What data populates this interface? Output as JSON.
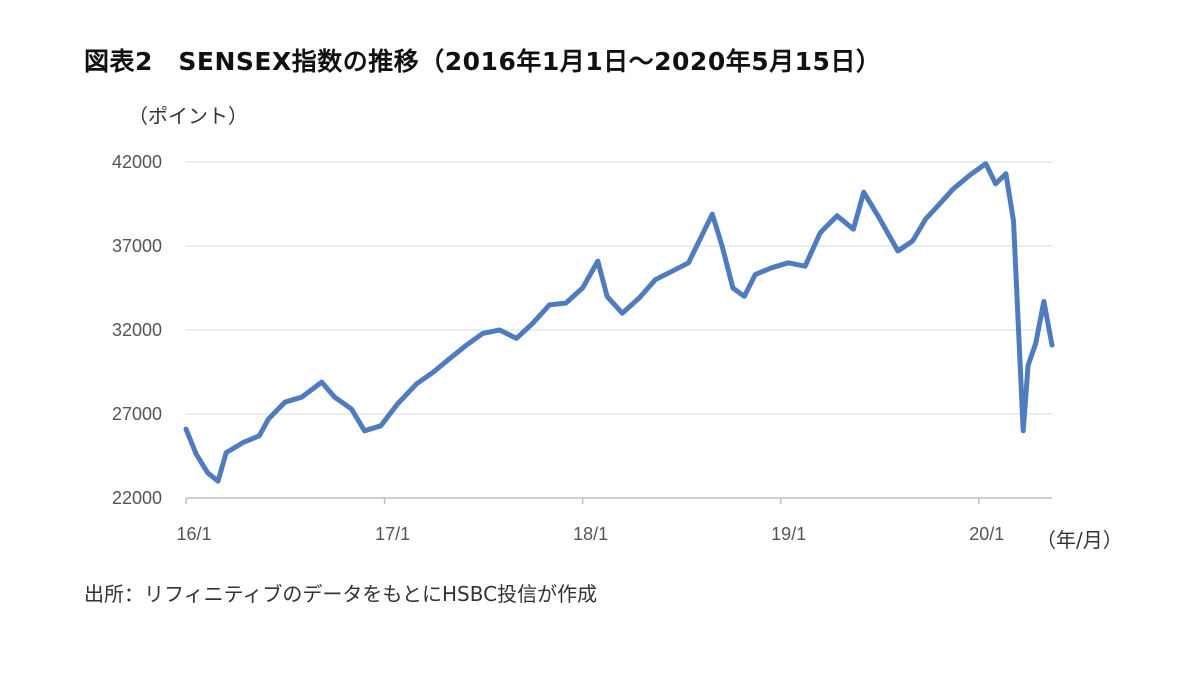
{
  "title": "図表2　SENSEX指数の推移（2016年1月1日～2020年5月15日）",
  "y_unit_label": "（ポイント）",
  "x_unit_label": "（年/月）",
  "source": "出所：リフィニティブのデータをもとにHSBC投信が作成",
  "colors": {
    "line": "#4f7bbf",
    "grid": "#d9d9d9",
    "axis": "#bfbfbf"
  },
  "chart_data": {
    "type": "line",
    "ylim": [
      22000,
      42000
    ],
    "y_ticks": [
      22000,
      27000,
      32000,
      37000,
      42000
    ],
    "y_tick_labels": [
      "22000",
      "27000",
      "32000",
      "37000",
      "42000"
    ],
    "x_range": [
      "2016-01-01",
      "2020-05-15"
    ],
    "x_ticks": [
      "2016-01-01",
      "2017-01-01",
      "2018-01-01",
      "2019-01-01",
      "2020-01-01"
    ],
    "x_tick_labels": [
      "16/1",
      "17/1",
      "18/1",
      "19/1",
      "20/1"
    ],
    "grid": "horizontal",
    "series": [
      {
        "x": [
          "2016-01-01",
          "2016-01-20",
          "2016-02-10",
          "2016-02-29",
          "2016-03-15",
          "2016-04-15",
          "2016-05-15",
          "2016-06-01",
          "2016-07-01",
          "2016-08-01",
          "2016-09-07",
          "2016-10-01",
          "2016-11-01",
          "2016-11-25",
          "2016-12-25",
          "2017-01-25",
          "2017-03-01",
          "2017-04-01",
          "2017-05-01",
          "2017-06-01",
          "2017-07-01",
          "2017-08-01",
          "2017-09-01",
          "2017-10-01",
          "2017-11-01",
          "2017-12-01",
          "2018-01-01",
          "2018-01-29",
          "2018-02-15",
          "2018-03-15",
          "2018-04-15",
          "2018-05-15",
          "2018-06-15",
          "2018-07-15",
          "2018-08-28",
          "2018-09-15",
          "2018-10-05",
          "2018-10-26",
          "2018-11-15",
          "2018-12-15",
          "2019-01-15",
          "2019-02-15",
          "2019-03-15",
          "2019-04-15",
          "2019-05-15",
          "2019-06-03",
          "2019-07-01",
          "2019-08-05",
          "2019-09-01",
          "2019-09-25",
          "2019-10-15",
          "2019-11-15",
          "2019-12-15",
          "2020-01-14",
          "2020-02-01",
          "2020-02-20",
          "2020-03-05",
          "2020-03-23",
          "2020-04-01",
          "2020-04-15",
          "2020-04-30",
          "2020-05-15"
        ],
        "y": [
          26100,
          24600,
          23500,
          23000,
          24700,
          25300,
          25700,
          26700,
          27700,
          28000,
          28900,
          28000,
          27300,
          26000,
          26300,
          27600,
          28800,
          29500,
          30300,
          31100,
          31800,
          32000,
          31500,
          32400,
          33500,
          33600,
          34500,
          36100,
          34000,
          33000,
          33900,
          35000,
          35500,
          36000,
          38900,
          37000,
          34500,
          34000,
          35300,
          35700,
          36000,
          35800,
          37800,
          38800,
          38000,
          40200,
          38700,
          36700,
          37300,
          38600,
          39300,
          40400,
          41200,
          41900,
          40700,
          41300,
          38500,
          26000,
          29900,
          31200,
          33700,
          31100
        ]
      }
    ]
  }
}
